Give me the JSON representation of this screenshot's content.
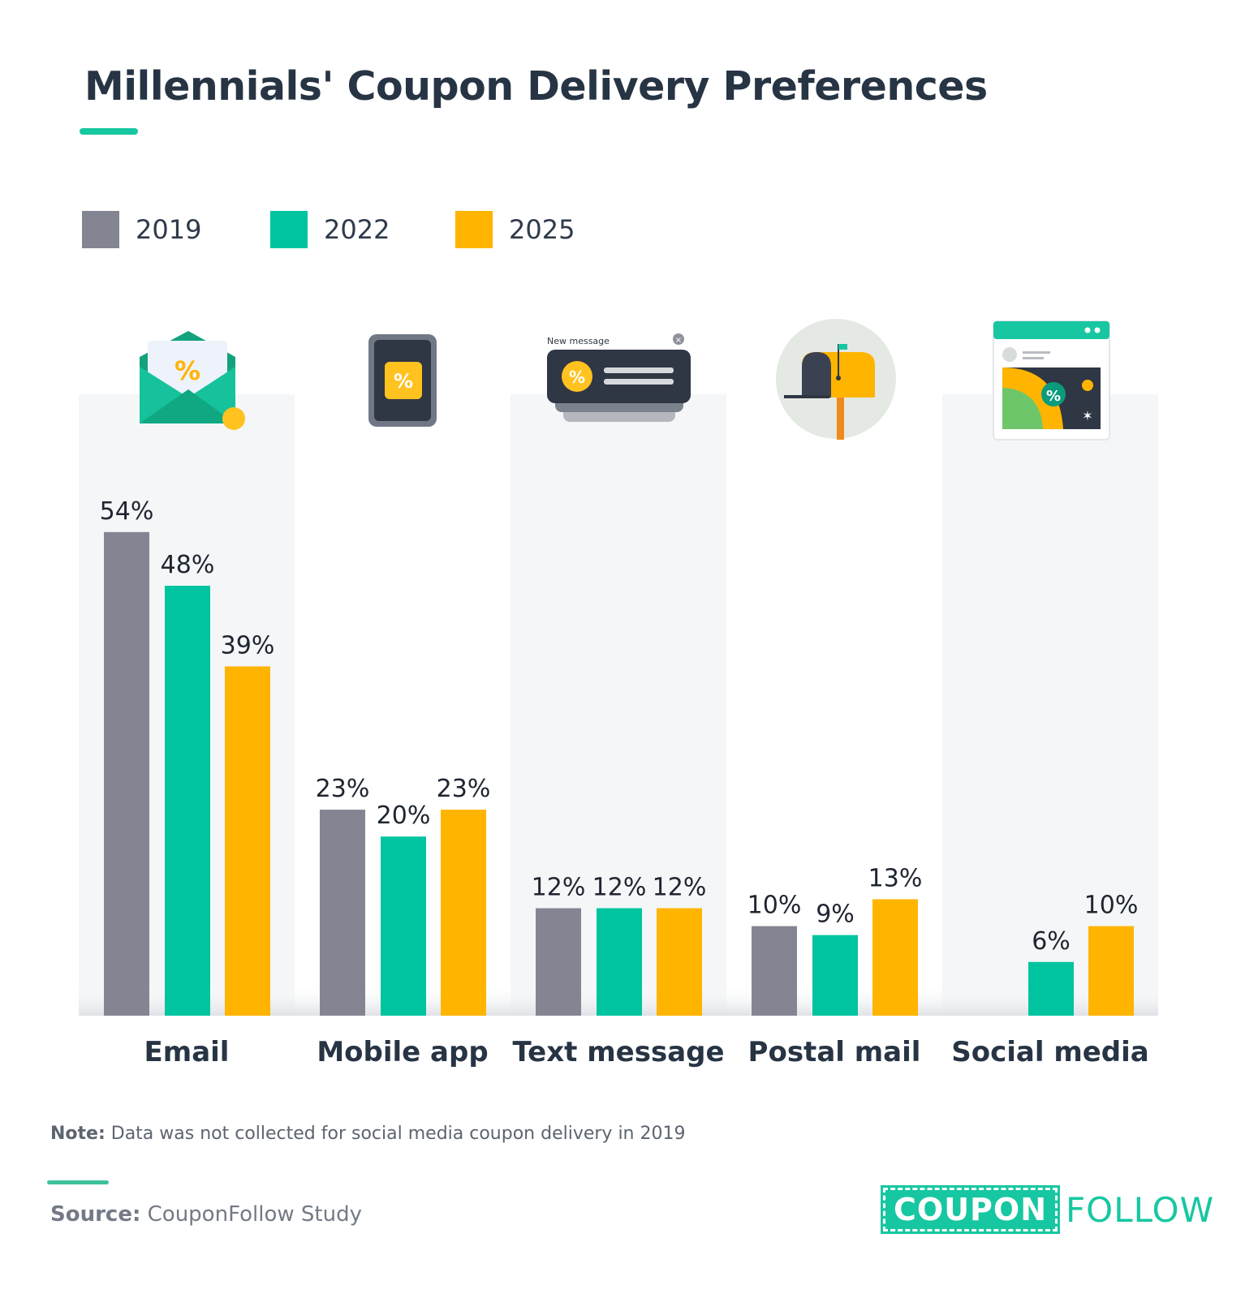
{
  "title": "Millennials' Coupon Delivery Preferences",
  "legend": [
    {
      "label": "2019",
      "color": "#838593"
    },
    {
      "label": "2022",
      "color": "#00c4a0"
    },
    {
      "label": "2025",
      "color": "#ffb400"
    }
  ],
  "chart_data": {
    "type": "bar",
    "title": "Millennials' Coupon Delivery Preferences",
    "categories": [
      "Email",
      "Mobile app",
      "Text message",
      "Postal mail",
      "Social media"
    ],
    "series": [
      {
        "name": "2019",
        "values": [
          54,
          23,
          12,
          10,
          null
        ],
        "color": "#838593"
      },
      {
        "name": "2022",
        "values": [
          48,
          20,
          12,
          9,
          6
        ],
        "color": "#00c4a0"
      },
      {
        "name": "2025",
        "values": [
          39,
          23,
          12,
          13,
          10
        ],
        "color": "#ffb400"
      }
    ],
    "value_suffix": "%",
    "ylim": [
      0,
      70
    ],
    "xlabel": "",
    "ylabel": "",
    "legend_position": "top-left",
    "grid": false
  },
  "icons": {
    "Email": "envelope-coupon-icon",
    "Mobile app": "phone-coupon-icon",
    "Text message": "text-message-coupon-icon",
    "Postal mail": "mailbox-icon",
    "Social media": "social-post-icon"
  },
  "icon_text": {
    "new_message": "New message",
    "percent": "%"
  },
  "note": {
    "prefix": "Note:",
    "text": " Data was not collected for social media coupon delivery in 2019"
  },
  "source": {
    "prefix": "Source:",
    "text": " CouponFollow Study"
  },
  "logo": {
    "part1": "COUPON",
    "part2": "FOLLOW"
  }
}
